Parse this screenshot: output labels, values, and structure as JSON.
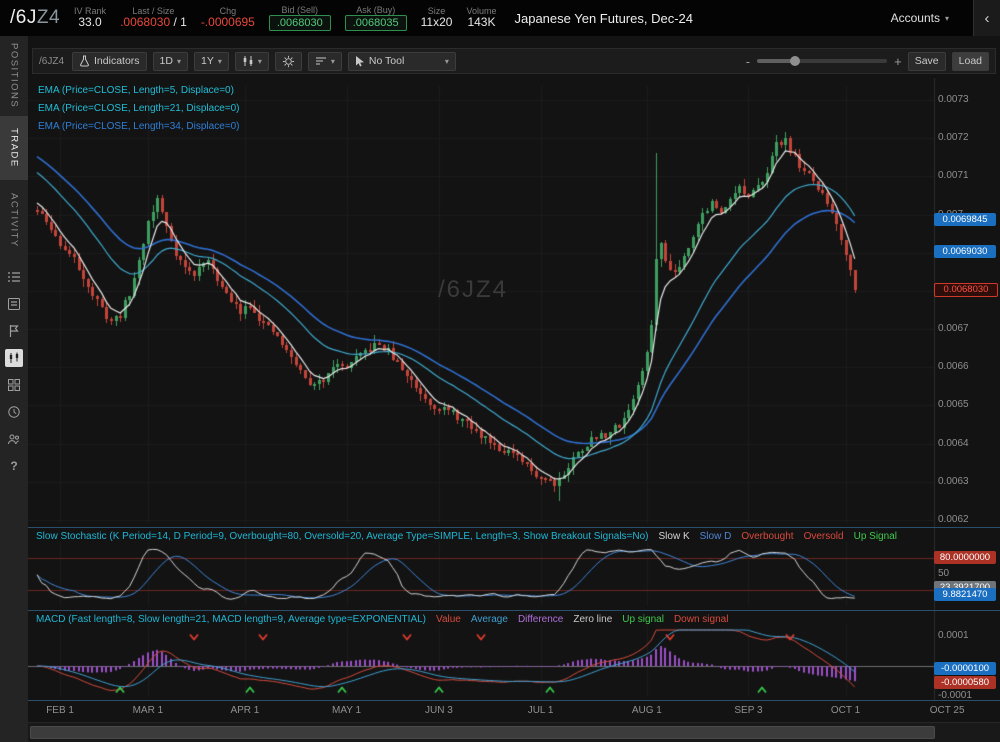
{
  "header": {
    "symbol": "/6J",
    "symbol_series": "Z4",
    "iv_rank_label": "IV Rank",
    "iv_rank_value": "33.0",
    "last_label": "Last / Size",
    "last_value": ".0068030",
    "last_size_suffix": "/ 1",
    "chg_label": "Chg",
    "chg_value": "-.0000695",
    "bid_label": "Bid (Sell)",
    "bid_value": ".0068030",
    "ask_label": "Ask (Buy)",
    "ask_value": ".0068035",
    "size_label": "Size",
    "size_value": "11x20",
    "volume_label": "Volume",
    "volume_value": "143K",
    "instrument_title": "Japanese Yen Futures, Dec-24",
    "accounts_label": "Accounts",
    "collapse_chevron": "‹"
  },
  "sidebar": {
    "tabs": [
      {
        "label": "POSITIONS"
      },
      {
        "label": "TRADE"
      },
      {
        "label": "ACTIVITY"
      }
    ]
  },
  "toolbar": {
    "symbol_label": "/6JZ4",
    "indicators_label": "Indicators",
    "timeframe_value": "1D",
    "range_value": "1Y",
    "no_tool_label": "No Tool",
    "zoom_minus": "-",
    "zoom_plus": "+",
    "save_label": "Save",
    "load_label": "Load"
  },
  "chart": {
    "watermark": "/6JZ4",
    "legend": [
      {
        "label": "EMA (Price=CLOSE, Length=5, Displace=0)",
        "color": "#21bdd6"
      },
      {
        "label": "EMA (Price=CLOSE, Length=21, Displace=0)",
        "color": "#21bdd6"
      },
      {
        "label": "EMA (Price=CLOSE, Length=34, Displace=0)",
        "color": "#2f7fd6"
      }
    ],
    "price_ticks": [
      {
        "label": "0.0073",
        "value": 0.0073
      },
      {
        "label": "0.0072",
        "value": 0.0072
      },
      {
        "label": "0.0071",
        "value": 0.0071
      },
      {
        "label": "0.007",
        "value": 0.007
      },
      {
        "label": "0.0069",
        "value": 0.0069
      },
      {
        "label": "0.0068",
        "value": 0.0068
      },
      {
        "label": "0.0067",
        "value": 0.0067
      },
      {
        "label": "0.0066",
        "value": 0.0066
      },
      {
        "label": "0.0065",
        "value": 0.0065
      },
      {
        "label": "0.0064",
        "value": 0.0064
      },
      {
        "label": "0.0063",
        "value": 0.0063
      },
      {
        "label": "0.0062",
        "value": 0.0062
      }
    ],
    "price_bubbles": [
      {
        "text": "0.0069845",
        "value": 0.0069845,
        "type": "ema-34-value"
      },
      {
        "text": "0.0069030",
        "value": 0.006903,
        "type": "ema-21-value"
      },
      {
        "text": "0.0068030",
        "value": 0.006803,
        "type": "last-price"
      }
    ]
  },
  "stochastic": {
    "title": "Slow Stochastic (K Period=14, D Period=9, Overbought=80, Oversold=20, Average Type=SIMPLE, Length=3, Show Breakout Signals=No)",
    "legend": [
      {
        "label": "Slow K",
        "color": "#d6d6d6"
      },
      {
        "label": "Slow D",
        "color": "#4f86d8"
      },
      {
        "label": "Overbought",
        "color": "#d84a3c"
      },
      {
        "label": "Oversold",
        "color": "#d84a3c"
      },
      {
        "label": "Up Signal",
        "color": "#3fca4e"
      }
    ],
    "bubble_overbought": "80.0000000",
    "mid_label": "50",
    "bubble_k": "23.3921700",
    "bubble_k_value": 23.39217,
    "bubble_d": "9.8821470",
    "bubble_d_value": 9.882147
  },
  "macd": {
    "title": "MACD (Fast length=8, Slow length=21, MACD length=9, Average type=EXPONENTIAL)",
    "legend": [
      {
        "label": "Value",
        "color": "#d84a3c"
      },
      {
        "label": "Average",
        "color": "#3f9fd0"
      },
      {
        "label": "Difference",
        "color": "#b06fd8"
      },
      {
        "label": "Zero line",
        "color": "#c8c8c8"
      },
      {
        "label": "Up signal",
        "color": "#3fca4e"
      },
      {
        "label": "Down signal",
        "color": "#d84a3c"
      }
    ],
    "tick_top": "0.0001",
    "tick_bottom": "-0.0001",
    "bubble_avg": "-0.0000100",
    "bubble_avg_value": -1e-05,
    "bubble_val": "-0.0000580",
    "bubble_val_value": -5.8e-05
  },
  "time_axis": {
    "labels": [
      {
        "text": "FEB 1",
        "day": 5
      },
      {
        "text": "MAR 1",
        "day": 24
      },
      {
        "text": "APR 1",
        "day": 45
      },
      {
        "text": "MAY 1",
        "day": 67
      },
      {
        "text": "JUN 3",
        "day": 87
      },
      {
        "text": "JUL 1",
        "day": 109
      },
      {
        "text": "AUG 1",
        "day": 132
      },
      {
        "text": "SEP 3",
        "day": 154
      },
      {
        "text": "OCT 1",
        "day": 175
      },
      {
        "text": "OCT 25",
        "day": 197
      }
    ]
  },
  "chart_data": {
    "type": "candlestick",
    "symbol": "/6JZ4",
    "title": "Japanese Yen Futures, Dec-24, 1Y daily",
    "price_range": [
      0.0062,
      0.0073
    ],
    "last_day": 177,
    "last_close": 0.006803,
    "anchors": [
      [
        0,
        0.00701
      ],
      [
        2,
        0.00698
      ],
      [
        4,
        0.00694
      ],
      [
        6,
        0.00691
      ],
      [
        8,
        0.00688
      ],
      [
        10,
        0.00684
      ],
      [
        12,
        0.00679
      ],
      [
        14,
        0.00675
      ],
      [
        16,
        0.00672
      ],
      [
        18,
        0.00674
      ],
      [
        20,
        0.00679
      ],
      [
        22,
        0.00688
      ],
      [
        24,
        0.00698
      ],
      [
        26,
        0.00704
      ],
      [
        28,
        0.00697
      ],
      [
        30,
        0.0069
      ],
      [
        32,
        0.00686
      ],
      [
        34,
        0.00684
      ],
      [
        36,
        0.00688
      ],
      [
        38,
        0.00686
      ],
      [
        40,
        0.00681
      ],
      [
        42,
        0.00677
      ],
      [
        44,
        0.00675
      ],
      [
        46,
        0.00677
      ],
      [
        48,
        0.00673
      ],
      [
        50,
        0.0067
      ],
      [
        52,
        0.00668
      ],
      [
        54,
        0.00664
      ],
      [
        56,
        0.00661
      ],
      [
        58,
        0.00657
      ],
      [
        60,
        0.00655
      ],
      [
        62,
        0.00657
      ],
      [
        64,
        0.00661
      ],
      [
        66,
        0.0066
      ],
      [
        68,
        0.00661
      ],
      [
        70,
        0.00663
      ],
      [
        72,
        0.00665
      ],
      [
        74,
        0.00666
      ],
      [
        76,
        0.00664
      ],
      [
        78,
        0.00661
      ],
      [
        80,
        0.00658
      ],
      [
        82,
        0.00655
      ],
      [
        84,
        0.00652
      ],
      [
        86,
        0.0065
      ],
      [
        88,
        0.00649
      ],
      [
        90,
        0.00648
      ],
      [
        92,
        0.00646
      ],
      [
        94,
        0.00644
      ],
      [
        96,
        0.00642
      ],
      [
        98,
        0.00641
      ],
      [
        100,
        0.00639
      ],
      [
        102,
        0.00638
      ],
      [
        104,
        0.00636
      ],
      [
        106,
        0.00634
      ],
      [
        108,
        0.00632
      ],
      [
        110,
        0.00631
      ],
      [
        112,
        0.0063
      ],
      [
        114,
        0.00632
      ],
      [
        116,
        0.00636
      ],
      [
        118,
        0.00639
      ],
      [
        120,
        0.00641
      ],
      [
        122,
        0.00642
      ],
      [
        124,
        0.00643
      ],
      [
        126,
        0.00645
      ],
      [
        128,
        0.00649
      ],
      [
        130,
        0.00655
      ],
      [
        132,
        0.00663
      ],
      [
        133,
        0.00672
      ],
      [
        134,
        0.00688
      ],
      [
        135,
        0.00692
      ],
      [
        136,
        0.00688
      ],
      [
        138,
        0.00685
      ],
      [
        140,
        0.00689
      ],
      [
        142,
        0.00695
      ],
      [
        144,
        0.007
      ],
      [
        146,
        0.00703
      ],
      [
        148,
        0.007
      ],
      [
        150,
        0.00705
      ],
      [
        152,
        0.00707
      ],
      [
        154,
        0.00704
      ],
      [
        156,
        0.00707
      ],
      [
        158,
        0.00712
      ],
      [
        160,
        0.00718
      ],
      [
        162,
        0.0072
      ],
      [
        163,
        0.00717
      ],
      [
        165,
        0.00713
      ],
      [
        167,
        0.0071
      ],
      [
        169,
        0.00707
      ],
      [
        171,
        0.00703
      ],
      [
        173,
        0.00698
      ],
      [
        174,
        0.00694
      ],
      [
        175,
        0.0069
      ],
      [
        176,
        0.00685
      ],
      [
        177,
        0.00681
      ]
    ],
    "spikes": [
      {
        "day": 113,
        "low": 0.00625
      },
      {
        "day": 134,
        "high": 0.00716
      }
    ],
    "ema_lengths": [
      5,
      21,
      34
    ],
    "stochastic": {
      "k_period": 14,
      "d_period": 9,
      "smoothing": 3,
      "overbought": 80,
      "oversold": 20
    },
    "macd": {
      "fast": 8,
      "slow": 21,
      "signal": 9
    },
    "macd_axis": {
      "tick_top_value": 0.0001,
      "tick_bottom_value": -0.0001
    },
    "up_signal_days": [
      18,
      46,
      66,
      87,
      111,
      157
    ],
    "down_signal_days": [
      34,
      49,
      80,
      96,
      137,
      163
    ],
    "colors": {
      "up": "#3e9e5f",
      "down": "#c2443a",
      "ema5": "#e8e8e8",
      "ema21": "#3fa9cf",
      "ema34": "#2f6fd0",
      "slow_k": "#d4d4d4",
      "slow_d": "#3f86d8",
      "band": "#6b2822",
      "hist": "#9b4fc8",
      "macd_value": "#d34a3c",
      "macd_avg": "#3f9fd0",
      "up_signal": "#37c84a",
      "down_signal": "#e03c2e"
    }
  }
}
